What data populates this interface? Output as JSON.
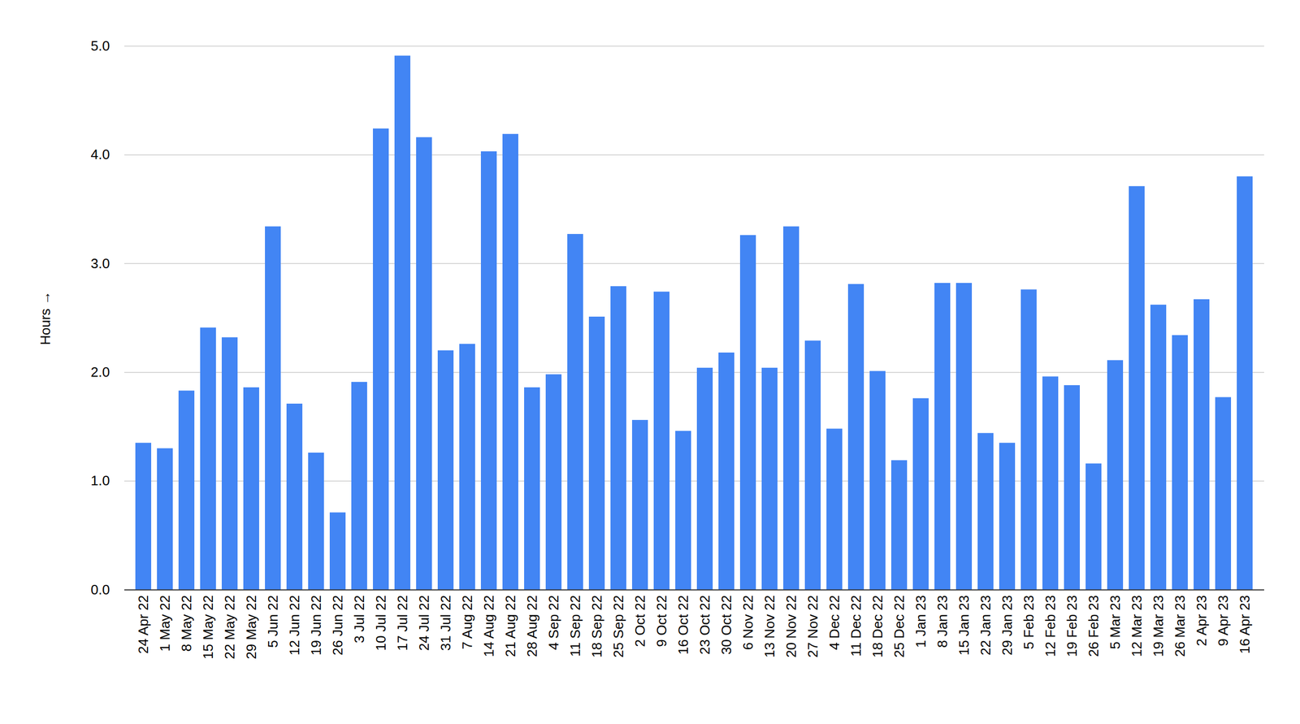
{
  "chart_data": {
    "type": "bar",
    "y_label": "Hours",
    "categories": [
      "24 Apr 22",
      "1 May 22",
      "8 May 22",
      "15 May 22",
      "22 May 22",
      "29 May 22",
      "5 Jun 22",
      "12 Jun 22",
      "19 Jun 22",
      "26 Jun 22",
      "3 Jul 22",
      "10 Jul 22",
      "17 Jul 22",
      "24 Jul 22",
      "31 Jul 22",
      "7 Aug 22",
      "14 Aug 22",
      "21 Aug 22",
      "28 Aug 22",
      "4 Sep 22",
      "11 Sep 22",
      "18 Sep 22",
      "25 Sep 22",
      "2 Oct 22",
      "9 Oct 22",
      "16 Oct 22",
      "23 Oct 22",
      "30 Oct 22",
      "6 Nov 22",
      "13 Nov 22",
      "20 Nov 22",
      "27 Nov 22",
      "4 Dec 22",
      "11 Dec 22",
      "18 Dec 22",
      "25 Dec 22",
      "1 Jan 23",
      "8 Jan 23",
      "15 Jan 23",
      "22 Jan 23",
      "29 Jan 23",
      "5 Feb 23",
      "12 Feb 23",
      "19 Feb 23",
      "26 Feb 23",
      "5 Mar 23",
      "12 Mar 23",
      "19 Mar 23",
      "26 Mar 23",
      "2 Apr 23",
      "9 Apr 23",
      "16 Apr 23"
    ],
    "values": [
      1.35,
      1.3,
      1.83,
      2.41,
      2.32,
      1.86,
      3.34,
      1.71,
      1.26,
      0.71,
      1.91,
      4.24,
      4.91,
      4.16,
      2.2,
      2.26,
      4.03,
      4.19,
      1.86,
      1.98,
      3.27,
      2.51,
      2.79,
      1.56,
      2.74,
      1.46,
      2.04,
      2.18,
      3.26,
      2.04,
      3.34,
      2.29,
      1.48,
      2.81,
      2.01,
      1.19,
      1.76,
      2.82,
      2.82,
      1.44,
      1.35,
      2.76,
      1.96,
      1.88,
      1.16,
      2.11,
      3.71,
      2.62,
      2.34,
      2.67,
      1.77,
      3.8
    ],
    "color": "#4285f4",
    "ylim": [
      0,
      5
    ],
    "yticks": [
      0,
      1,
      2,
      3,
      4,
      5
    ],
    "grid": true
  }
}
